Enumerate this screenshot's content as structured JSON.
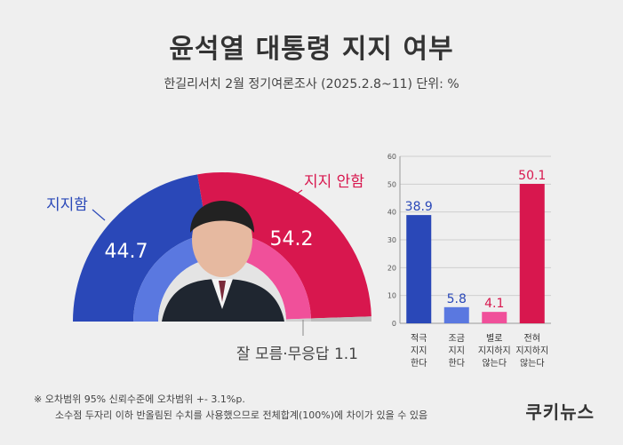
{
  "header": {
    "title": "윤석열 대통령 지지 여부",
    "subtitle": "한길리서치 2월 정기여론조사 (2025.2.8~11) 단위: %"
  },
  "chart_data": [
    {
      "type": "pie",
      "style": "half-donut",
      "categories": [
        "지지함",
        "지지 안함",
        "잘 모름·무응답"
      ],
      "values": [
        44.7,
        54.2,
        1.1
      ],
      "colors": [
        "#2a48b8",
        "#d8174e",
        "#bdbdbd"
      ],
      "inner_colors": [
        "#5a78e0",
        "#f0509a",
        "#d0d0d0"
      ],
      "label_texts": [
        "44.7",
        "54.2",
        "잘 모름·무응답 1.1"
      ]
    },
    {
      "type": "bar",
      "categories": [
        [
          "적극",
          "지지",
          "한다"
        ],
        [
          "조금",
          "지지",
          "한다"
        ],
        [
          "별로",
          "지지하지",
          "않는다"
        ],
        [
          "전혀",
          "지지하지",
          "않는다"
        ]
      ],
      "values": [
        38.9,
        5.8,
        4.1,
        50.1
      ],
      "colors": [
        "#2a48b8",
        "#5a78e0",
        "#f0509a",
        "#d8174e"
      ],
      "value_colors": [
        "#2a48b8",
        "#2a48b8",
        "#d8174e",
        "#d8174e"
      ],
      "ylim": [
        0,
        60
      ],
      "yticks": [
        0,
        10,
        20,
        30,
        40,
        50,
        60
      ],
      "grid": true
    }
  ],
  "notes": {
    "line1": "※ 오차범위 95% 신뢰수준에 오차범위 +- 3.1%p.",
    "line2": "소수점 두자리 이하 반올림된 수치를 사용했으므로 전체합계(100%)에 차이가 있을 수 있음"
  },
  "brand": "쿠키뉴스"
}
